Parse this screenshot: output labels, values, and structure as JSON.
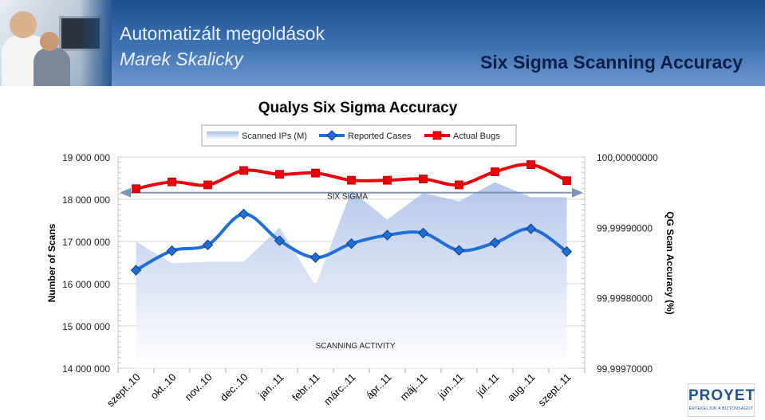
{
  "header": {
    "title": "Automatizált megoldások",
    "author": "Marek Skalicky",
    "topic": "Six Sigma Scanning Accuracy"
  },
  "logo": {
    "name": "PROYET",
    "tagline": "ÉRTÉKELJÜK A BIZTONSÁGOT"
  },
  "chart_data": {
    "type": "line",
    "title": "Qualys Six Sigma Accuracy",
    "ylabel": "Number of Scans",
    "y2label": "QG Scan Accuracy  (%)",
    "categories": [
      "szept..10",
      "okt..10",
      "nov..10",
      "dec..10",
      "jan..11",
      "febr..11",
      "márc..11",
      "ápr..11",
      "máj..11",
      "jún..11",
      "júl..11",
      "aug..11",
      "szept..11"
    ],
    "ylim": [
      14000000,
      19000000
    ],
    "y_ticks": [
      19000000,
      18000000,
      17000000,
      16000000,
      15000000,
      14000000
    ],
    "y_tick_labels": [
      "19 000 000",
      "18 000 000",
      "17 000 000",
      "16 000 000",
      "15 000 000",
      "14 000 000"
    ],
    "y2lim": [
      99.9997,
      100.0
    ],
    "y2_ticks": [
      100.0,
      99.9999,
      99.9998,
      99.9997
    ],
    "y2_tick_labels": [
      "100,00000000",
      "99,99990000",
      "99,99980000",
      "99,99970000"
    ],
    "series": [
      {
        "name": "Scanned IPs (M)",
        "kind": "area",
        "axis": "left",
        "values": [
          17000000,
          16480000,
          16520000,
          16520000,
          17330000,
          15950000,
          18200000,
          17520000,
          18150000,
          17950000,
          18400000,
          18050000,
          18050000
        ]
      },
      {
        "name": "Reported Cases",
        "kind": "line",
        "axis": "left",
        "color": "#1f6fd6",
        "values": [
          16320000,
          16780000,
          16920000,
          17650000,
          17020000,
          16620000,
          16950000,
          17150000,
          17200000,
          16790000,
          16970000,
          17300000,
          16760000
        ]
      },
      {
        "name": "Actual Bugs",
        "kind": "line",
        "axis": "left",
        "color": "#e8000a",
        "values": [
          18250000,
          18410000,
          18340000,
          18680000,
          18590000,
          18620000,
          18450000,
          18450000,
          18480000,
          18340000,
          18650000,
          18820000,
          18440000
        ]
      }
    ],
    "annotations": [
      {
        "text": "SIX SIGMA",
        "value": 18100000
      },
      {
        "text": "SCANNING ACTIVITY",
        "value": 14700000
      }
    ],
    "legend_position": "top-center"
  }
}
